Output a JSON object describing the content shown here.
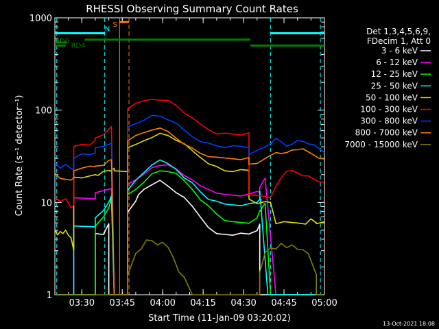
{
  "chart_data": {
    "type": "line",
    "title": "RHESSI Observing Summary Count Rates",
    "xlabel": "Start Time (11-Jan-09 03:20:02)",
    "ylabel": "Count Rate (s⁻¹ detector⁻¹)",
    "yscale": "log",
    "ylim": [
      1,
      1000
    ],
    "xlim_minutes": [
      0,
      100
    ],
    "x_ticks": [
      {
        "t": 10,
        "label": "03:30"
      },
      {
        "t": 25,
        "label": "03:45"
      },
      {
        "t": 40,
        "label": "04:00"
      },
      {
        "t": 55,
        "label": "04:15"
      },
      {
        "t": 70,
        "label": "04:30"
      },
      {
        "t": 85,
        "label": "04:45"
      },
      {
        "t": 100,
        "label": "05:00"
      }
    ],
    "y_ticks": [
      {
        "v": 1,
        "label": "1"
      },
      {
        "v": 10,
        "label": "10"
      },
      {
        "v": 100,
        "label": "100"
      },
      {
        "v": 1000,
        "label": "1000"
      }
    ],
    "legend_header": [
      "Det 1,3,4,5,6,9,",
      "FDecim 1, Att 0"
    ],
    "legend_position": "right",
    "timestamp": "13-Oct-2021 18:08",
    "colors": {
      "axes": "#ffffff",
      "decimation": "#008000",
      "night": "#00ffff",
      "saa": "#ff8000"
    },
    "series": [
      {
        "name": "3 - 6 keV",
        "color": "#ffffff",
        "x": [
          0,
          7,
          7,
          15,
          15,
          18,
          20,
          20,
          22,
          22,
          25,
          25,
          27,
          27,
          30,
          31,
          33,
          36,
          39,
          42,
          45,
          48,
          51,
          54,
          57,
          60,
          63,
          66,
          69,
          72,
          75,
          76,
          76,
          78,
          79,
          80,
          82,
          82,
          85,
          88,
          91,
          95,
          97,
          97,
          100
        ],
        "y": [
          0,
          0,
          0,
          0,
          4.5,
          4.5,
          6,
          0,
          0,
          0,
          0,
          0,
          0,
          8,
          10,
          12,
          14,
          16,
          17,
          15,
          13,
          11,
          9,
          7,
          5.5,
          4.5,
          4.5,
          4.5,
          4.5,
          4.5,
          5,
          6,
          0,
          0,
          0,
          0,
          0,
          0,
          0,
          0,
          0,
          0,
          0,
          0,
          0
        ]
      },
      {
        "name": "6 - 12 keV",
        "color": "#ff00ff",
        "x": [
          0,
          7,
          7,
          15,
          15,
          18,
          21,
          21,
          22,
          22,
          27,
          27,
          30,
          33,
          36,
          39,
          42,
          45,
          48,
          51,
          54,
          57,
          60,
          63,
          66,
          69,
          72,
          75,
          76,
          76,
          78,
          82,
          85,
          88,
          91,
          95,
          97,
          97,
          100
        ],
        "y": [
          0,
          0,
          11,
          11,
          13,
          13,
          14,
          14,
          0,
          0,
          0,
          16,
          17,
          20,
          24,
          26,
          25,
          23,
          20,
          17,
          15,
          14,
          13,
          12,
          12,
          12,
          12,
          13,
          13,
          15,
          18,
          0,
          0,
          0,
          0,
          0,
          0,
          0,
          0
        ],
        "hidden_ranges": [
          [
            78,
            100
          ]
        ]
      },
      {
        "name": "12 - 25 keV",
        "color": "#00ff00",
        "x": [
          0,
          7,
          7,
          15,
          15,
          18,
          20,
          21,
          22,
          22,
          27,
          27,
          30,
          33,
          36,
          39,
          42,
          45,
          48,
          51,
          54,
          57,
          60,
          63,
          66,
          69,
          72,
          75,
          76,
          76,
          78,
          80,
          82,
          85,
          88,
          91,
          95,
          97,
          97,
          100
        ],
        "y": [
          0,
          0,
          0,
          0,
          5.5,
          7,
          9,
          11,
          0,
          0,
          0,
          12,
          14,
          17,
          20,
          22,
          22,
          20,
          17,
          14,
          11,
          9,
          7.5,
          6.5,
          6,
          6,
          6,
          7,
          8,
          8,
          10,
          0,
          0,
          0,
          0,
          0,
          0,
          0,
          0,
          0
        ]
      },
      {
        "name": "25 - 50 keV",
        "color": "#00ffff",
        "x": [
          0,
          7,
          7,
          15,
          15,
          18,
          20,
          21,
          22,
          22,
          27,
          27,
          30,
          33,
          36,
          39,
          42,
          45,
          48,
          51,
          54,
          57,
          60,
          63,
          66,
          69,
          72,
          75,
          76,
          76,
          79,
          82,
          85,
          88,
          91,
          95,
          97,
          97,
          100
        ],
        "y": [
          0,
          0,
          5.5,
          5.5,
          7,
          8,
          10,
          12,
          0,
          0,
          0,
          14,
          17,
          21,
          26,
          28,
          26,
          23,
          19,
          16,
          13,
          11,
          10,
          9.5,
          9.5,
          9.5,
          9.5,
          10,
          11,
          13,
          0,
          0,
          0,
          0,
          0,
          0,
          0,
          0,
          0
        ]
      },
      {
        "name": "50 - 100 keV",
        "color": "#e0e000",
        "x": [
          0,
          1,
          2,
          3,
          4,
          5,
          6,
          7,
          7,
          10,
          13,
          15,
          16,
          18,
          20,
          21,
          21,
          22,
          22,
          27,
          27,
          30,
          33,
          36,
          39,
          42,
          45,
          48,
          51,
          54,
          57,
          60,
          63,
          66,
          69,
          72,
          72,
          75,
          78,
          80,
          82,
          85,
          88,
          91,
          93,
          95,
          97,
          97,
          100
        ],
        "y": [
          5,
          4.5,
          5,
          4.5,
          5,
          4.5,
          4,
          3,
          19,
          19,
          19,
          20,
          20,
          21,
          22,
          22,
          23,
          23,
          22,
          22,
          38,
          42,
          47,
          52,
          55,
          53,
          48,
          42,
          36,
          31,
          27,
          24,
          22,
          22,
          22,
          22,
          11,
          10,
          10,
          10,
          6,
          6,
          6,
          6,
          6,
          6.5,
          6,
          6,
          6
        ]
      },
      {
        "name": "100 - 300 keV",
        "color": "#ff0000",
        "x": [
          0,
          2,
          4,
          6,
          7,
          7,
          10,
          13,
          15,
          15,
          18,
          20,
          21,
          21,
          22,
          22,
          27,
          27,
          30,
          33,
          36,
          39,
          42,
          45,
          48,
          51,
          54,
          57,
          60,
          63,
          66,
          69,
          72,
          72,
          75,
          78,
          80,
          82,
          84,
          86,
          88,
          90,
          92,
          94,
          96,
          98,
          100
        ],
        "y": [
          12,
          10,
          11,
          9,
          9,
          40,
          43,
          43,
          46,
          50,
          55,
          60,
          66,
          66,
          0,
          0,
          0,
          105,
          115,
          125,
          132,
          132,
          125,
          112,
          95,
          80,
          70,
          62,
          57,
          55,
          55,
          55,
          55,
          12,
          12,
          12,
          11,
          15,
          19,
          21,
          22,
          21,
          20,
          19,
          18,
          17,
          16
        ]
      },
      {
        "name": "300 - 800 keV",
        "color": "#0040ff",
        "x": [
          0,
          2,
          4,
          6,
          7,
          7,
          10,
          13,
          15,
          15,
          18,
          20,
          21,
          21,
          22,
          22,
          27,
          27,
          30,
          33,
          36,
          39,
          42,
          45,
          48,
          51,
          54,
          57,
          60,
          63,
          66,
          69,
          72,
          72,
          75,
          78,
          80,
          82,
          84,
          86,
          88,
          90,
          92,
          94,
          96,
          98,
          100
        ],
        "y": [
          27,
          24,
          25,
          23,
          23,
          31,
          33,
          33,
          35,
          38,
          40,
          43,
          45,
          45,
          0,
          0,
          0,
          65,
          72,
          80,
          86,
          86,
          80,
          70,
          60,
          52,
          47,
          43,
          41,
          40,
          40,
          40,
          40,
          34,
          36,
          40,
          44,
          48,
          45,
          41,
          44,
          46,
          46,
          44,
          41,
          38,
          35
        ]
      },
      {
        "name": "800 - 7000 keV",
        "color": "#ff8000",
        "x": [
          0,
          2,
          4,
          6,
          7,
          7,
          10,
          13,
          15,
          15,
          18,
          20,
          21,
          21,
          22,
          22,
          27,
          27,
          30,
          33,
          36,
          39,
          42,
          45,
          48,
          51,
          54,
          57,
          60,
          63,
          66,
          69,
          72,
          72,
          75,
          78,
          80,
          82,
          84,
          86,
          88,
          90,
          92,
          94,
          96,
          98,
          100
        ],
        "y": [
          20,
          18,
          18,
          18,
          18,
          22,
          24,
          24,
          24,
          25,
          26,
          28,
          29,
          29,
          0,
          0,
          0,
          48,
          52,
          57,
          62,
          62,
          58,
          50,
          44,
          38,
          34,
          32,
          30,
          30,
          30,
          30,
          30,
          26,
          27,
          29,
          32,
          35,
          35,
          34,
          37,
          38,
          37,
          35,
          33,
          31,
          29
        ]
      },
      {
        "name": "7000 - 15000 keV",
        "color": "#808000",
        "x": [
          0,
          27,
          27,
          30,
          32,
          34,
          36,
          38,
          40,
          42,
          44,
          46,
          48,
          51,
          54,
          57,
          60,
          63,
          66,
          69,
          72,
          76,
          76,
          78,
          80,
          82,
          84,
          86,
          88,
          90,
          92,
          94,
          96,
          97,
          97,
          100
        ],
        "y": [
          0,
          0,
          1.6,
          2.8,
          3.2,
          3.8,
          3.8,
          3.5,
          3.8,
          3.2,
          2.5,
          1.8,
          1.5,
          0,
          0,
          0,
          0,
          0,
          0,
          0,
          0,
          0,
          1.8,
          2.8,
          3.2,
          3.2,
          3.5,
          3.2,
          3.5,
          3.2,
          3,
          2.8,
          2,
          1.6,
          0,
          0
        ]
      }
    ],
    "annotations": [
      {
        "text": "RD0",
        "color": "#008000",
        "x_min": 0,
        "y_val": 570
      },
      {
        "text": "RD4",
        "color": "#008000",
        "x_min": 6,
        "y_val": 510
      },
      {
        "text": "N",
        "color": "#00ffff",
        "x_min": 18.5,
        "y_val": 770
      },
      {
        "text": "S",
        "color": "#ff8000",
        "x_min": 21.5,
        "y_val": 860
      }
    ],
    "decimation_bars": [
      {
        "label": "RD0",
        "segments": [
          [
            0,
            4.5,
            540
          ]
        ]
      },
      {
        "label": "RD4",
        "segments": [
          [
            0,
            4,
            500
          ],
          [
            11,
            72.5,
            580
          ],
          [
            72.5,
            100,
            500
          ]
        ]
      }
    ],
    "night_segments": [
      [
        0,
        18.5,
        680
      ],
      [
        80,
        100,
        680
      ]
    ],
    "night_bounds": [
      0.7,
      18.5,
      80,
      98.5
    ],
    "saa_segment": [
      24,
      27.5,
      900
    ],
    "saa_bounds": [
      24,
      27.5
    ]
  }
}
